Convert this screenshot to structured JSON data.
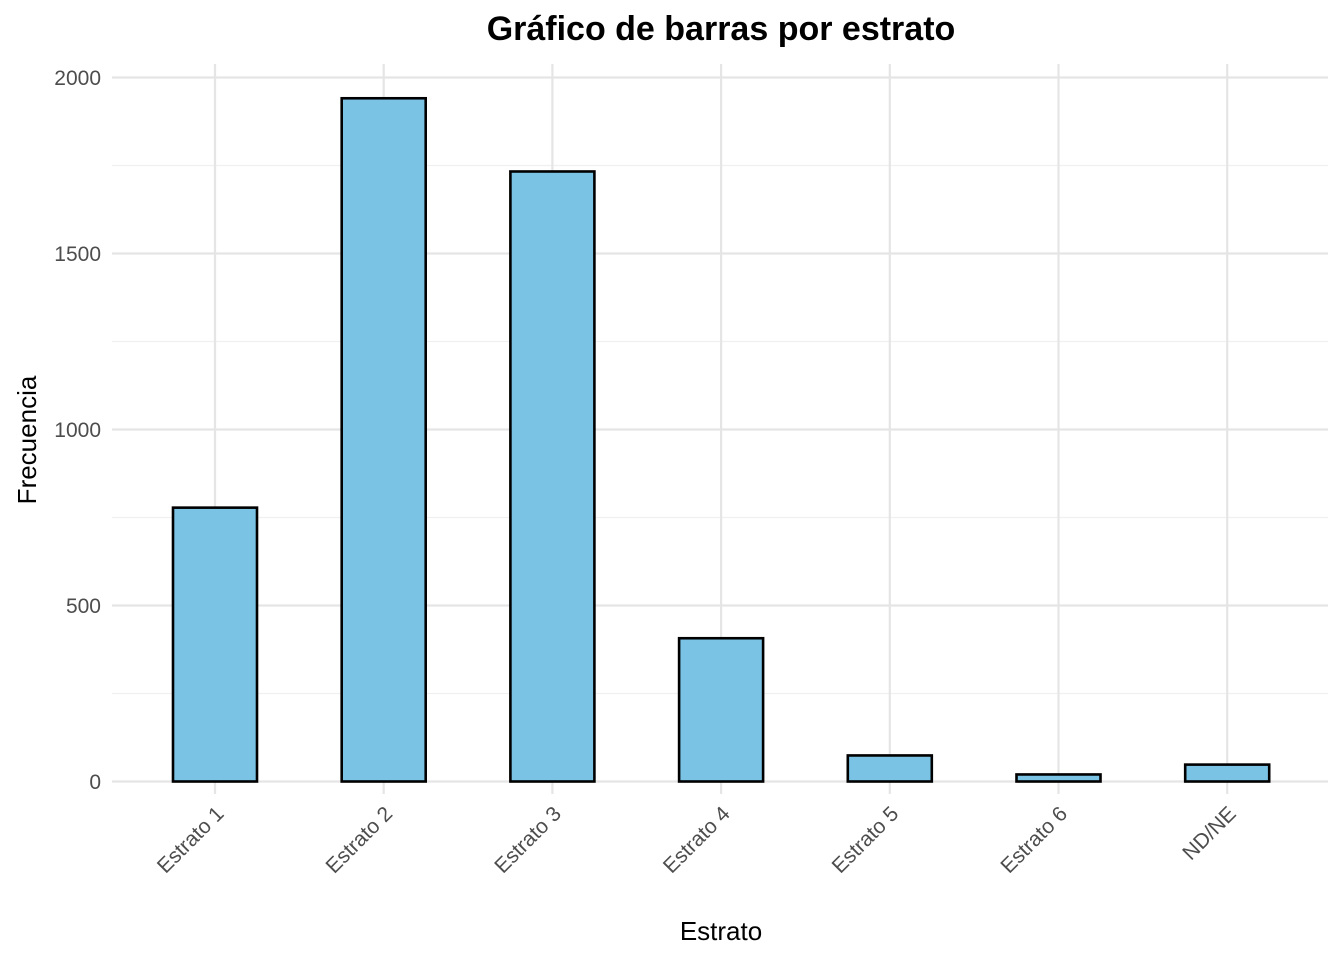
{
  "chart_data": {
    "type": "bar",
    "title": "Gráfico de barras por estrato",
    "xlabel": "Estrato",
    "ylabel": "Frecuencia",
    "categories": [
      "Estrato 1",
      "Estrato 2",
      "Estrato 3",
      "Estrato 4",
      "Estrato 5",
      "Estrato 6",
      "ND/NE"
    ],
    "values": [
      778,
      1941,
      1733,
      407,
      74,
      20,
      48
    ],
    "ylim": [
      -80,
      2040
    ],
    "yticks": [
      0,
      500,
      1000,
      1500,
      2000
    ],
    "grid": true,
    "legend": "none",
    "colors": {
      "bar_fill": "#7AC3E5",
      "bar_stroke": "#000000",
      "grid_major": "#e5e5e5",
      "grid_minor": "#f0f0f0",
      "tick_text": "#4d4d4d",
      "title_text": "#000000"
    }
  }
}
